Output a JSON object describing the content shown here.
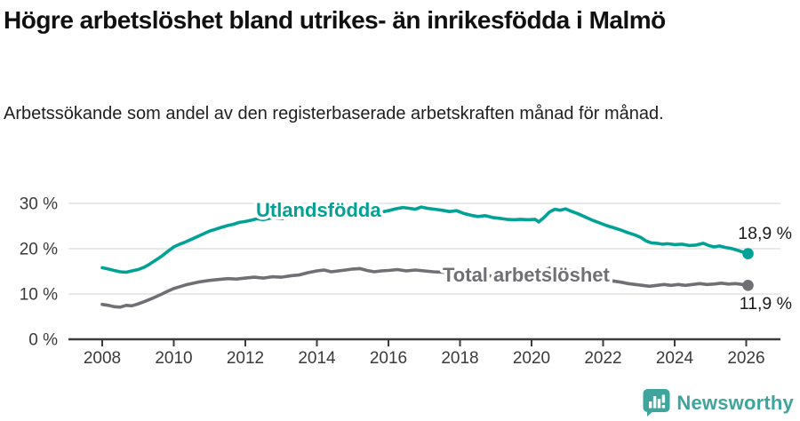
{
  "title": "Högre arbetslöshet bland utrikes- än inrikesfödda i Malmö",
  "subtitle": "Arbetssökande som andel av den registerbaserade arbetskraften månad för månad.",
  "footer": {
    "brand": "Newsworthy"
  },
  "colors": {
    "accent": "#01a295",
    "series_gray": "#6f6f74",
    "axis": "#3c3c3c",
    "grid": "#dcdcdc",
    "tick_text": "#3a3a3a",
    "value_text": "#1a1a1a",
    "logo": "#3ea49c"
  },
  "chart_data": {
    "type": "line",
    "title": "Högre arbetslöshet bland utrikes- än inrikesfödda i Malmö",
    "xlabel": "",
    "ylabel": "Arbetssökande som andel av den registerbaserade arbetskraften",
    "x_unit": "year, monthly observations",
    "xlim": [
      2007.7,
      2027.0
    ],
    "ylim": [
      0,
      32
    ],
    "grid": "horizontal",
    "legend_position": "inline-labels",
    "xticks": [
      2008,
      2010,
      2012,
      2014,
      2016,
      2018,
      2020,
      2022,
      2024,
      2026
    ],
    "yticks": [
      {
        "value": 0,
        "label": "0 %"
      },
      {
        "value": 10,
        "label": "10 %"
      },
      {
        "value": 20,
        "label": "20 %"
      },
      {
        "value": 30,
        "label": "30 %"
      }
    ],
    "series": [
      {
        "name": "Utlandsfödda",
        "color": "#01a295",
        "end_label": "18,9 %",
        "end_value": 18.9,
        "points": [
          [
            2008.0,
            15.8
          ],
          [
            2008.17,
            15.5
          ],
          [
            2008.33,
            15.2
          ],
          [
            2008.5,
            14.9
          ],
          [
            2008.67,
            14.8
          ],
          [
            2008.83,
            15.1
          ],
          [
            2009.0,
            15.4
          ],
          [
            2009.17,
            15.9
          ],
          [
            2009.33,
            16.6
          ],
          [
            2009.5,
            17.5
          ],
          [
            2009.67,
            18.4
          ],
          [
            2009.83,
            19.4
          ],
          [
            2010.0,
            20.4
          ],
          [
            2010.17,
            21.0
          ],
          [
            2010.33,
            21.5
          ],
          [
            2010.5,
            22.1
          ],
          [
            2010.67,
            22.7
          ],
          [
            2010.83,
            23.3
          ],
          [
            2011.0,
            23.9
          ],
          [
            2011.17,
            24.3
          ],
          [
            2011.33,
            24.7
          ],
          [
            2011.5,
            25.1
          ],
          [
            2011.67,
            25.4
          ],
          [
            2011.83,
            25.8
          ],
          [
            2012.0,
            26.0
          ],
          [
            2012.17,
            26.3
          ],
          [
            2012.33,
            26.6
          ],
          [
            2012.5,
            26.4
          ],
          [
            2012.75,
            26.8
          ],
          [
            2013.0,
            26.6
          ],
          [
            2013.25,
            27.0
          ],
          [
            2013.5,
            26.8
          ],
          [
            2013.75,
            27.1
          ],
          [
            2014.0,
            27.0
          ],
          [
            2014.25,
            27.3
          ],
          [
            2014.5,
            27.2
          ],
          [
            2014.75,
            27.5
          ],
          [
            2015.0,
            27.5
          ],
          [
            2015.25,
            27.8
          ],
          [
            2015.5,
            27.7
          ],
          [
            2015.75,
            28.0
          ],
          [
            2016.0,
            28.4
          ],
          [
            2016.2,
            28.8
          ],
          [
            2016.4,
            29.1
          ],
          [
            2016.6,
            28.9
          ],
          [
            2016.75,
            28.7
          ],
          [
            2016.92,
            29.2
          ],
          [
            2017.1,
            28.9
          ],
          [
            2017.3,
            28.7
          ],
          [
            2017.5,
            28.5
          ],
          [
            2017.7,
            28.2
          ],
          [
            2017.9,
            28.4
          ],
          [
            2018.1,
            27.8
          ],
          [
            2018.3,
            27.4
          ],
          [
            2018.5,
            27.1
          ],
          [
            2018.7,
            27.3
          ],
          [
            2018.9,
            26.9
          ],
          [
            2019.1,
            26.7
          ],
          [
            2019.3,
            26.5
          ],
          [
            2019.5,
            26.4
          ],
          [
            2019.7,
            26.5
          ],
          [
            2019.9,
            26.4
          ],
          [
            2020.1,
            26.5
          ],
          [
            2020.2,
            25.9
          ],
          [
            2020.35,
            26.9
          ],
          [
            2020.5,
            28.1
          ],
          [
            2020.65,
            28.7
          ],
          [
            2020.8,
            28.5
          ],
          [
            2020.95,
            28.8
          ],
          [
            2021.1,
            28.3
          ],
          [
            2021.3,
            27.7
          ],
          [
            2021.5,
            27.0
          ],
          [
            2021.7,
            26.3
          ],
          [
            2021.9,
            25.7
          ],
          [
            2022.1,
            25.1
          ],
          [
            2022.3,
            24.6
          ],
          [
            2022.5,
            24.1
          ],
          [
            2022.7,
            23.5
          ],
          [
            2022.9,
            23.0
          ],
          [
            2023.05,
            22.5
          ],
          [
            2023.2,
            21.7
          ],
          [
            2023.35,
            21.3
          ],
          [
            2023.5,
            21.2
          ],
          [
            2023.65,
            21.0
          ],
          [
            2023.8,
            21.1
          ],
          [
            2024.0,
            20.9
          ],
          [
            2024.2,
            21.0
          ],
          [
            2024.4,
            20.7
          ],
          [
            2024.6,
            20.8
          ],
          [
            2024.8,
            21.2
          ],
          [
            2024.95,
            20.7
          ],
          [
            2025.1,
            20.4
          ],
          [
            2025.25,
            20.6
          ],
          [
            2025.4,
            20.3
          ],
          [
            2025.55,
            20.1
          ],
          [
            2025.7,
            19.8
          ],
          [
            2025.85,
            19.4
          ],
          [
            2026.05,
            18.9
          ]
        ]
      },
      {
        "name": "Total arbetslöshet",
        "color": "#6f6f74",
        "end_label": "11,9 %",
        "end_value": 11.9,
        "points": [
          [
            2008.0,
            7.7
          ],
          [
            2008.17,
            7.5
          ],
          [
            2008.33,
            7.2
          ],
          [
            2008.5,
            7.1
          ],
          [
            2008.67,
            7.5
          ],
          [
            2008.83,
            7.4
          ],
          [
            2009.0,
            7.8
          ],
          [
            2009.17,
            8.3
          ],
          [
            2009.33,
            8.8
          ],
          [
            2009.5,
            9.4
          ],
          [
            2009.67,
            10.0
          ],
          [
            2009.83,
            10.6
          ],
          [
            2010.0,
            11.2
          ],
          [
            2010.17,
            11.6
          ],
          [
            2010.33,
            12.0
          ],
          [
            2010.5,
            12.3
          ],
          [
            2010.67,
            12.6
          ],
          [
            2010.83,
            12.8
          ],
          [
            2011.0,
            13.0
          ],
          [
            2011.25,
            13.2
          ],
          [
            2011.5,
            13.4
          ],
          [
            2011.75,
            13.3
          ],
          [
            2012.0,
            13.5
          ],
          [
            2012.25,
            13.7
          ],
          [
            2012.5,
            13.5
          ],
          [
            2012.75,
            13.8
          ],
          [
            2013.0,
            13.7
          ],
          [
            2013.25,
            14.0
          ],
          [
            2013.5,
            14.2
          ],
          [
            2013.75,
            14.7
          ],
          [
            2014.0,
            15.1
          ],
          [
            2014.2,
            15.3
          ],
          [
            2014.4,
            14.9
          ],
          [
            2014.6,
            15.1
          ],
          [
            2014.8,
            15.3
          ],
          [
            2015.0,
            15.5
          ],
          [
            2015.2,
            15.6
          ],
          [
            2015.4,
            15.2
          ],
          [
            2015.6,
            14.9
          ],
          [
            2015.8,
            15.1
          ],
          [
            2016.0,
            15.2
          ],
          [
            2016.25,
            15.4
          ],
          [
            2016.5,
            15.1
          ],
          [
            2016.75,
            15.3
          ],
          [
            2017.0,
            15.1
          ],
          [
            2017.25,
            14.9
          ],
          [
            2017.5,
            14.8
          ],
          [
            2017.75,
            14.6
          ],
          [
            2018.0,
            14.5
          ],
          [
            2018.33,
            14.3
          ],
          [
            2018.67,
            14.1
          ],
          [
            2019.0,
            13.9
          ],
          [
            2019.33,
            13.7
          ],
          [
            2019.67,
            13.6
          ],
          [
            2020.0,
            13.8
          ],
          [
            2020.2,
            14.3
          ],
          [
            2020.4,
            15.4
          ],
          [
            2020.6,
            16.0
          ],
          [
            2020.8,
            15.8
          ],
          [
            2021.0,
            15.4
          ],
          [
            2021.25,
            14.9
          ],
          [
            2021.5,
            14.3
          ],
          [
            2021.75,
            13.8
          ],
          [
            2022.0,
            13.3
          ],
          [
            2022.25,
            12.9
          ],
          [
            2022.5,
            12.6
          ],
          [
            2022.7,
            12.3
          ],
          [
            2022.9,
            12.1
          ],
          [
            2023.1,
            11.9
          ],
          [
            2023.3,
            11.7
          ],
          [
            2023.5,
            11.9
          ],
          [
            2023.7,
            12.1
          ],
          [
            2023.9,
            11.9
          ],
          [
            2024.1,
            12.1
          ],
          [
            2024.3,
            11.9
          ],
          [
            2024.5,
            12.1
          ],
          [
            2024.7,
            12.3
          ],
          [
            2024.9,
            12.1
          ],
          [
            2025.1,
            12.2
          ],
          [
            2025.3,
            12.4
          ],
          [
            2025.5,
            12.2
          ],
          [
            2025.7,
            12.3
          ],
          [
            2025.9,
            12.1
          ],
          [
            2026.05,
            11.9
          ]
        ]
      }
    ]
  }
}
